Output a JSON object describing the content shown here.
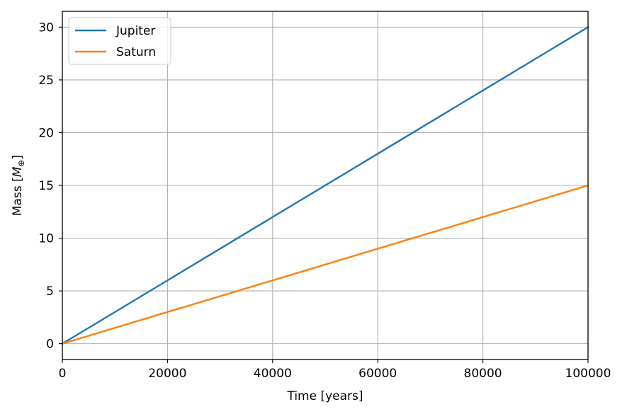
{
  "chart_data": {
    "type": "line",
    "xlabel": "Time [years]",
    "ylabel": "Mass [M⊕]",
    "ylabel_parts": {
      "pre": "Mass [",
      "sym": "M",
      "sub": "⊕",
      "post": "]"
    },
    "xlim": [
      0,
      100000
    ],
    "ylim": [
      -1.5,
      31.5
    ],
    "xticks": [
      0,
      20000,
      40000,
      60000,
      80000,
      100000
    ],
    "xtick_labels": [
      "0",
      "20000",
      "40000",
      "60000",
      "80000",
      "100000"
    ],
    "yticks": [
      0,
      5,
      10,
      15,
      20,
      25,
      30
    ],
    "ytick_labels": [
      "0",
      "5",
      "10",
      "15",
      "20",
      "25",
      "30"
    ],
    "grid": true,
    "legend_position": "top-left",
    "series": [
      {
        "name": "Jupiter",
        "color": "#1f77b4",
        "x": [
          0,
          100000
        ],
        "y": [
          0,
          30
        ]
      },
      {
        "name": "Saturn",
        "color": "#ff7f0e",
        "x": [
          0,
          100000
        ],
        "y": [
          0,
          15
        ]
      }
    ]
  }
}
